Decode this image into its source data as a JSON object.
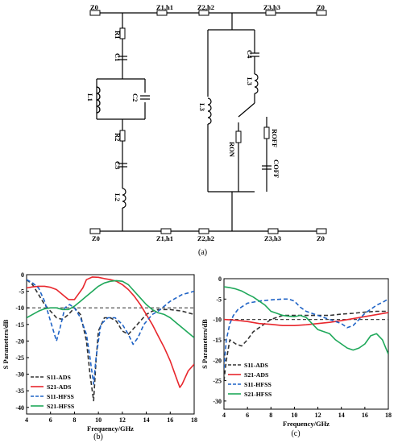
{
  "circuit": {
    "top_labels": {
      "z0_left": "Z0",
      "z1h1": "Z1,h1",
      "z2h2": "Z2,h2",
      "z3h3": "Z3,h3",
      "z0_right": "Z0"
    },
    "bottom_labels": {
      "z0_left": "Z0",
      "z1h1": "Z1,h1",
      "z2h2": "Z2,h2",
      "z3h3": "Z3,h3",
      "z0_right": "Z0"
    },
    "left_branch": {
      "r1": "R1",
      "c1": "C1",
      "l1": "L1",
      "c2": "C2",
      "r2": "R2",
      "c3": "C3",
      "l2": "L2"
    },
    "right_branch": {
      "c4": "C4",
      "l3_series": "L3",
      "l3_shunt": "L3",
      "ron": "RON",
      "roff": "ROFF",
      "coff": "COFF"
    },
    "caption": "(a)"
  },
  "chart_data": [
    {
      "type": "line",
      "caption": "(b)",
      "xlabel": "Frequency/GHz",
      "ylabel": "S Parameters/dB",
      "xlim": [
        4,
        18
      ],
      "ylim": [
        -42,
        0
      ],
      "xticks": [
        4,
        6,
        8,
        10,
        12,
        14,
        16,
        18
      ],
      "yticks": [
        0,
        -5,
        -10,
        -15,
        -20,
        -25,
        -30,
        -35,
        -40
      ],
      "reference_line": -10,
      "legend_position": "bottom-left",
      "series": [
        {
          "name": "S11-ADS",
          "color": "#333333",
          "dash": "5,3",
          "x": [
            4,
            4.5,
            5,
            5.5,
            6,
            6.5,
            7,
            7.5,
            8,
            8.5,
            9,
            9.3,
            9.6,
            9.8,
            10,
            10.5,
            11,
            11.5,
            12,
            12.5,
            13,
            13.5,
            14,
            14.5,
            15,
            15.5,
            16,
            17,
            18
          ],
          "y": [
            -1.5,
            -3,
            -6,
            -9,
            -11,
            -13,
            -13.5,
            -12,
            -10,
            -12,
            -20,
            -30,
            -38,
            -26,
            -17,
            -13,
            -13,
            -14,
            -17,
            -18,
            -16,
            -14,
            -12,
            -11,
            -10.5,
            -10.5,
            -10.5,
            -11,
            -12
          ]
        },
        {
          "name": "S21-ADS",
          "color": "#e8272d",
          "dash": "",
          "x": [
            4,
            4.5,
            5,
            5.5,
            6,
            6.5,
            7,
            7.5,
            8,
            8.3,
            8.7,
            9,
            9.5,
            10,
            10.5,
            11,
            11.5,
            12,
            12.5,
            13,
            13.5,
            14,
            14.5,
            15,
            15.5,
            16,
            16.5,
            16.8,
            17,
            17.5,
            18
          ],
          "y": [
            -4,
            -3.7,
            -3.5,
            -3.5,
            -3.8,
            -4.5,
            -6,
            -7.5,
            -7.5,
            -6,
            -4,
            -1.5,
            -0.7,
            -0.8,
            -1.2,
            -1.5,
            -2,
            -3,
            -4.5,
            -6.5,
            -9,
            -12,
            -15,
            -18.5,
            -22,
            -26,
            -31,
            -34,
            -33,
            -29,
            -27
          ]
        },
        {
          "name": "S11-HFSS",
          "color": "#1f63c6",
          "dash": "5,3",
          "x": [
            4,
            4.5,
            5,
            5.5,
            6,
            6.5,
            6.8,
            7.2,
            7.6,
            8,
            8.5,
            9,
            9.3,
            9.6,
            9.8,
            10.2,
            10.8,
            11.4,
            12,
            12.5,
            12.9,
            13.3,
            13.8,
            14.5,
            15,
            15.5,
            16,
            16.5,
            17,
            17.5,
            18
          ],
          "y": [
            -1.5,
            -2.5,
            -4,
            -8,
            -14,
            -20,
            -16,
            -10,
            -9,
            -10,
            -13,
            -18,
            -25,
            -33,
            -25,
            -15,
            -13,
            -13,
            -15,
            -18,
            -21,
            -19,
            -15,
            -12,
            -11,
            -9.5,
            -8,
            -7,
            -6,
            -5.5,
            -5
          ]
        },
        {
          "name": "S21-HFSS",
          "color": "#1fa85a",
          "dash": "",
          "x": [
            4,
            4.5,
            5,
            5.5,
            6,
            6.5,
            7,
            7.5,
            8,
            8.5,
            9,
            9.5,
            10,
            10.5,
            11,
            11.5,
            12,
            12.5,
            13,
            13.5,
            14,
            14.5,
            15,
            15.5,
            16,
            16.5,
            17,
            17.5,
            18
          ],
          "y": [
            -13,
            -12,
            -11,
            -10.3,
            -10,
            -10,
            -10.5,
            -10.5,
            -9.5,
            -8,
            -6.5,
            -5,
            -3.5,
            -2.5,
            -2,
            -1.8,
            -2,
            -3,
            -5,
            -7,
            -9,
            -10.5,
            -11.5,
            -12,
            -13,
            -14.5,
            -16,
            -17.5,
            -19
          ]
        }
      ]
    },
    {
      "type": "line",
      "caption": "(c)",
      "xlabel": "Frequency/GHz",
      "ylabel": "S Parameters/dB",
      "xlim": [
        4,
        18
      ],
      "ylim": [
        -32,
        0
      ],
      "xticks": [
        4,
        6,
        8,
        10,
        12,
        14,
        16,
        18
      ],
      "yticks": [
        0,
        -5,
        -10,
        -15,
        -20,
        -25,
        -30
      ],
      "reference_line": -10,
      "legend_position": "bottom-left",
      "series": [
        {
          "name": "S11-ADS",
          "color": "#333333",
          "dash": "5,3",
          "x": [
            4,
            4.2,
            4.5,
            5,
            5.5,
            6,
            6.5,
            7,
            7.5,
            8,
            9,
            10,
            11,
            12,
            13,
            14,
            15,
            16,
            17,
            18
          ],
          "y": [
            -25,
            -20,
            -15,
            -16,
            -16.5,
            -15,
            -13,
            -12,
            -11,
            -10,
            -9,
            -9,
            -9,
            -9,
            -9,
            -8.7,
            -8.5,
            -8.2,
            -8,
            -8
          ]
        },
        {
          "name": "S21-ADS",
          "color": "#e8272d",
          "dash": "",
          "x": [
            4,
            5,
            6,
            7,
            8,
            9,
            10,
            11,
            12,
            13,
            14,
            15,
            16,
            17,
            18
          ],
          "y": [
            -10,
            -10.2,
            -10.5,
            -11,
            -11.2,
            -11.5,
            -11.5,
            -11.3,
            -11,
            -10.7,
            -10.3,
            -9.8,
            -9.3,
            -8.8,
            -8.3
          ]
        },
        {
          "name": "S11-HFSS",
          "color": "#1f63c6",
          "dash": "5,3",
          "x": [
            4,
            4.2,
            4.5,
            4.8,
            5.2,
            6,
            7,
            8,
            9,
            9.5,
            10,
            10.5,
            11,
            12,
            13,
            14,
            14.5,
            15,
            15.5,
            16,
            16.5,
            17,
            17.5,
            18
          ],
          "y": [
            -22,
            -15,
            -11,
            -9,
            -7.5,
            -6,
            -5.5,
            -5.2,
            -5,
            -5,
            -5.5,
            -7,
            -8,
            -9,
            -10,
            -11,
            -12,
            -11.5,
            -10,
            -8.5,
            -7.5,
            -6.5,
            -5.8,
            -5
          ]
        },
        {
          "name": "S21-HFSS",
          "color": "#1fa85a",
          "dash": "",
          "x": [
            4,
            4.5,
            5,
            5.5,
            6,
            6.5,
            7,
            7.5,
            8,
            8.5,
            9,
            9.5,
            10,
            10.5,
            11,
            11.5,
            12,
            12.5,
            13,
            13.5,
            14,
            14.5,
            15,
            15.5,
            16,
            16.5,
            17,
            17.5,
            18
          ],
          "y": [
            -2,
            -2.2,
            -2.5,
            -3,
            -3.8,
            -4.5,
            -5.5,
            -6.5,
            -8,
            -8.5,
            -9,
            -9.2,
            -9.3,
            -9,
            -9.5,
            -11,
            -12.5,
            -13,
            -13.5,
            -15,
            -16,
            -17,
            -17.5,
            -17,
            -16,
            -14,
            -13.5,
            -15,
            -18.5
          ]
        }
      ]
    }
  ]
}
